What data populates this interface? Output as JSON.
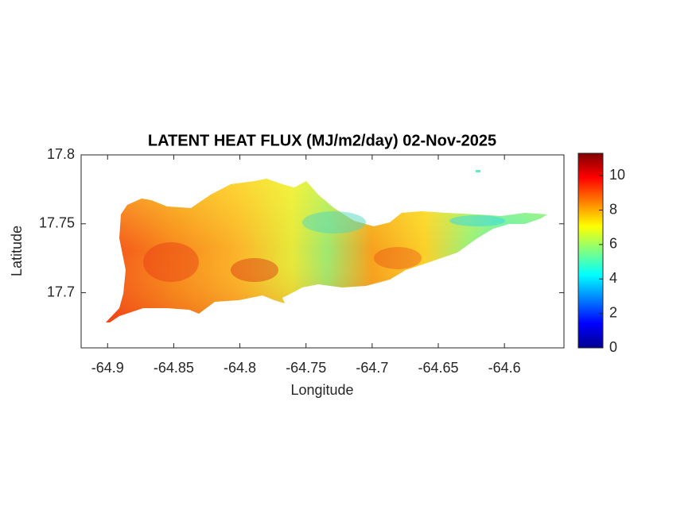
{
  "chart_data": {
    "type": "map",
    "title": "LATENT HEAT FLUX (MJ/m2/day) 02-Nov-2025",
    "xlabel": "Longitude",
    "ylabel": "Latitude",
    "xlim": [
      -64.92,
      -64.555
    ],
    "xticks": [
      -64.9,
      -64.85,
      -64.8,
      -64.75,
      -64.7,
      -64.65,
      -64.6
    ],
    "ylim": [
      17.66,
      17.8
    ],
    "yticks": [
      17.7,
      17.75,
      17.8
    ],
    "colorbar": {
      "colormap": "jet",
      "clim": [
        0,
        11.3
      ],
      "ticks": [
        0,
        2,
        4,
        6,
        8,
        10
      ]
    }
  }
}
